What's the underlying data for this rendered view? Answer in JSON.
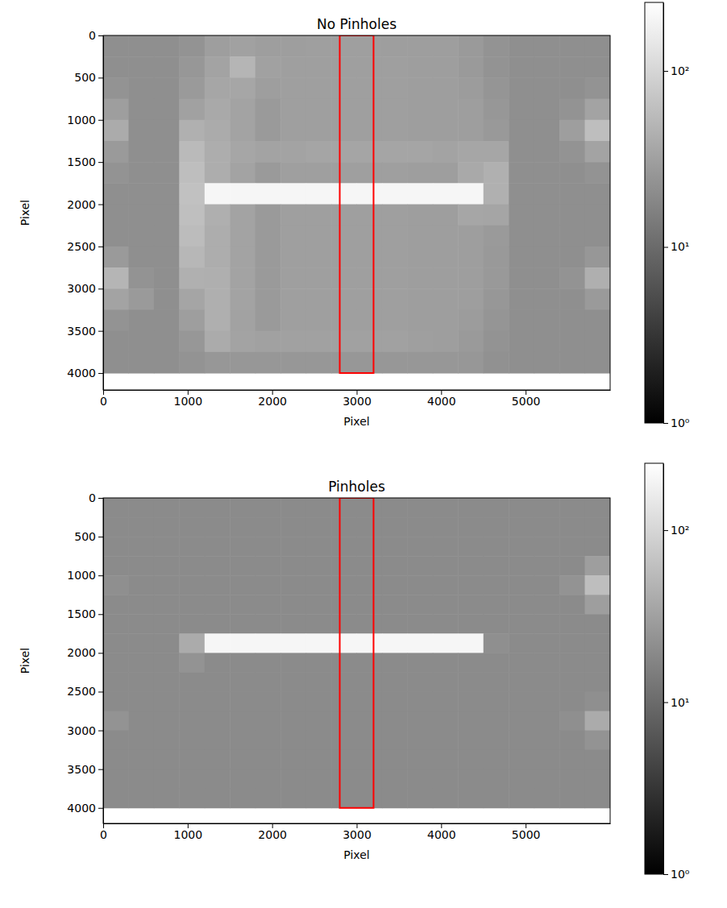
{
  "chart_data": [
    {
      "type": "heatmap",
      "title": "No Pinholes",
      "x_label": "Pixel",
      "y_label": "Pixel",
      "xlim": [
        0,
        6000
      ],
      "ylim": [
        0,
        4200
      ],
      "xticks": [
        0,
        1000,
        2000,
        3000,
        4000,
        5000
      ],
      "yticks": [
        0,
        500,
        1000,
        1500,
        2000,
        2500,
        3000,
        3500,
        4000
      ],
      "x_edges": [
        0,
        300,
        600,
        900,
        1200,
        1500,
        1800,
        2100,
        2400,
        2700,
        3000,
        3300,
        3600,
        3900,
        4200,
        4500,
        4800,
        5100,
        5400,
        5700,
        6000
      ],
      "y_edges": [
        0,
        250,
        500,
        750,
        1000,
        1250,
        1500,
        1750,
        2000,
        2250,
        2500,
        2750,
        3000,
        3250,
        3500,
        3750,
        4000
      ],
      "cells": [
        [
          22,
          22,
          22,
          24,
          30,
          32,
          30,
          30,
          31,
          31,
          31,
          30,
          30,
          30,
          28,
          24,
          22,
          22,
          22,
          22
        ],
        [
          22,
          22,
          22,
          26,
          34,
          50,
          32,
          31,
          31,
          31,
          31,
          31,
          30,
          30,
          28,
          24,
          22,
          22,
          22,
          22
        ],
        [
          24,
          22,
          22,
          28,
          36,
          36,
          30,
          31,
          31,
          31,
          31,
          31,
          30,
          30,
          29,
          25,
          22,
          22,
          22,
          24
        ],
        [
          30,
          22,
          22,
          32,
          38,
          34,
          28,
          31,
          31,
          31,
          31,
          31,
          30,
          30,
          30,
          26,
          22,
          22,
          24,
          34
        ],
        [
          40,
          22,
          22,
          45,
          40,
          34,
          28,
          31,
          31,
          31,
          31,
          31,
          30,
          30,
          30,
          27,
          22,
          22,
          30,
          60
        ],
        [
          28,
          22,
          22,
          55,
          42,
          36,
          34,
          34,
          35,
          35,
          35,
          35,
          35,
          34,
          36,
          36,
          22,
          22,
          24,
          34
        ],
        [
          24,
          22,
          22,
          60,
          42,
          34,
          28,
          31,
          31,
          31,
          31,
          31,
          30,
          30,
          38,
          45,
          22,
          22,
          22,
          24
        ],
        [
          22,
          22,
          22,
          65,
          200,
          200,
          200,
          200,
          200,
          200,
          200,
          200,
          200,
          200,
          200,
          45,
          22,
          22,
          22,
          22
        ],
        [
          22,
          22,
          22,
          62,
          44,
          34,
          28,
          31,
          31,
          31,
          31,
          31,
          30,
          30,
          36,
          35,
          22,
          22,
          22,
          22
        ],
        [
          22,
          22,
          22,
          58,
          42,
          34,
          28,
          31,
          31,
          31,
          31,
          31,
          30,
          30,
          30,
          28,
          22,
          22,
          22,
          22
        ],
        [
          28,
          22,
          22,
          52,
          42,
          34,
          28,
          31,
          31,
          31,
          31,
          31,
          30,
          30,
          30,
          27,
          22,
          22,
          22,
          26
        ],
        [
          50,
          24,
          22,
          45,
          44,
          34,
          28,
          31,
          31,
          31,
          31,
          31,
          30,
          30,
          30,
          27,
          22,
          22,
          24,
          44
        ],
        [
          34,
          28,
          22,
          35,
          44,
          34,
          28,
          31,
          31,
          31,
          31,
          31,
          30,
          30,
          30,
          26,
          22,
          22,
          22,
          28
        ],
        [
          24,
          22,
          22,
          30,
          44,
          33,
          28,
          31,
          31,
          31,
          31,
          31,
          30,
          30,
          29,
          25,
          22,
          22,
          22,
          22
        ],
        [
          22,
          22,
          22,
          26,
          40,
          34,
          32,
          32,
          32,
          32,
          32,
          32,
          31,
          30,
          28,
          24,
          22,
          22,
          22,
          22
        ],
        [
          22,
          22,
          22,
          24,
          26,
          26,
          26,
          26,
          26,
          26,
          26,
          26,
          26,
          26,
          26,
          23,
          22,
          22,
          22,
          22
        ]
      ],
      "colorbar": {
        "log": true,
        "range": [
          1,
          245
        ],
        "ticks": [
          {
            "value": 1,
            "label": "10⁰"
          },
          {
            "value": 10,
            "label": "10¹"
          },
          {
            "value": 100,
            "label": "10²"
          }
        ]
      },
      "region": {
        "x": [
          2800,
          3200
        ],
        "y": [
          0,
          4000
        ],
        "color": "#ff0000"
      }
    },
    {
      "type": "heatmap",
      "title": "Pinholes",
      "x_label": "Pixel",
      "y_label": "Pixel",
      "xlim": [
        0,
        6000
      ],
      "ylim": [
        0,
        4200
      ],
      "xticks": [
        0,
        1000,
        2000,
        3000,
        4000,
        5000
      ],
      "yticks": [
        0,
        500,
        1000,
        1500,
        2000,
        2500,
        3000,
        3500,
        4000
      ],
      "x_edges": [
        0,
        300,
        600,
        900,
        1200,
        1500,
        1800,
        2100,
        2400,
        2700,
        3000,
        3300,
        3600,
        3900,
        4200,
        4500,
        4800,
        5100,
        5400,
        5700,
        6000
      ],
      "y_edges": [
        0,
        250,
        500,
        750,
        1000,
        1250,
        1500,
        1750,
        2000,
        2250,
        2500,
        2750,
        3000,
        3250,
        3500,
        3750,
        4000
      ],
      "cells": [
        [
          20,
          20,
          20,
          20,
          20,
          20,
          20,
          20,
          20,
          20,
          20,
          20,
          20,
          20,
          20,
          20,
          20,
          20,
          20,
          20
        ],
        [
          20,
          20,
          20,
          20,
          20,
          20,
          20,
          20,
          20,
          20,
          20,
          20,
          20,
          20,
          20,
          20,
          20,
          20,
          20,
          20
        ],
        [
          20,
          20,
          20,
          20,
          20,
          20,
          20,
          20,
          20,
          20,
          20,
          20,
          20,
          20,
          20,
          20,
          20,
          20,
          20,
          20
        ],
        [
          20,
          20,
          20,
          20,
          20,
          20,
          20,
          20,
          20,
          20,
          20,
          20,
          20,
          20,
          20,
          20,
          20,
          20,
          20,
          30
        ],
        [
          22,
          20,
          20,
          20,
          20,
          20,
          20,
          20,
          20,
          20,
          20,
          20,
          20,
          20,
          20,
          20,
          20,
          20,
          24,
          60
        ],
        [
          20,
          20,
          20,
          20,
          20,
          20,
          20,
          20,
          20,
          20,
          20,
          20,
          20,
          20,
          20,
          20,
          20,
          20,
          20,
          30
        ],
        [
          20,
          20,
          20,
          20,
          20,
          20,
          20,
          20,
          20,
          20,
          20,
          20,
          20,
          20,
          20,
          20,
          20,
          20,
          20,
          20
        ],
        [
          20,
          20,
          20,
          40,
          200,
          200,
          200,
          200,
          200,
          200,
          200,
          200,
          200,
          200,
          200,
          22,
          20,
          20,
          20,
          20
        ],
        [
          20,
          20,
          20,
          24,
          20,
          20,
          20,
          20,
          20,
          20,
          20,
          20,
          20,
          20,
          20,
          20,
          20,
          20,
          20,
          20
        ],
        [
          20,
          20,
          20,
          20,
          20,
          20,
          20,
          20,
          20,
          20,
          20,
          20,
          20,
          20,
          20,
          20,
          20,
          20,
          20,
          20
        ],
        [
          20,
          20,
          20,
          20,
          20,
          20,
          20,
          20,
          20,
          20,
          20,
          20,
          20,
          20,
          20,
          20,
          20,
          20,
          20,
          22
        ],
        [
          24,
          20,
          20,
          20,
          20,
          20,
          20,
          20,
          20,
          20,
          20,
          20,
          20,
          20,
          20,
          20,
          20,
          20,
          22,
          40
        ],
        [
          20,
          20,
          20,
          20,
          20,
          20,
          20,
          20,
          20,
          20,
          20,
          20,
          20,
          20,
          20,
          20,
          20,
          20,
          20,
          24
        ],
        [
          20,
          20,
          20,
          20,
          20,
          20,
          20,
          20,
          20,
          20,
          20,
          20,
          20,
          20,
          20,
          20,
          20,
          20,
          20,
          20
        ],
        [
          20,
          20,
          20,
          20,
          20,
          20,
          20,
          20,
          20,
          20,
          20,
          20,
          20,
          20,
          20,
          20,
          20,
          20,
          20,
          20
        ],
        [
          20,
          20,
          20,
          20,
          20,
          20,
          20,
          20,
          20,
          20,
          20,
          20,
          20,
          20,
          20,
          20,
          20,
          20,
          20,
          20
        ]
      ],
      "colorbar": {
        "log": true,
        "range": [
          1,
          245
        ],
        "ticks": [
          {
            "value": 1,
            "label": "10⁰"
          },
          {
            "value": 10,
            "label": "10¹"
          },
          {
            "value": 100,
            "label": "10²"
          }
        ]
      },
      "region": {
        "x": [
          2800,
          3200
        ],
        "y": [
          0,
          4000
        ],
        "color": "#ff0000"
      }
    }
  ]
}
